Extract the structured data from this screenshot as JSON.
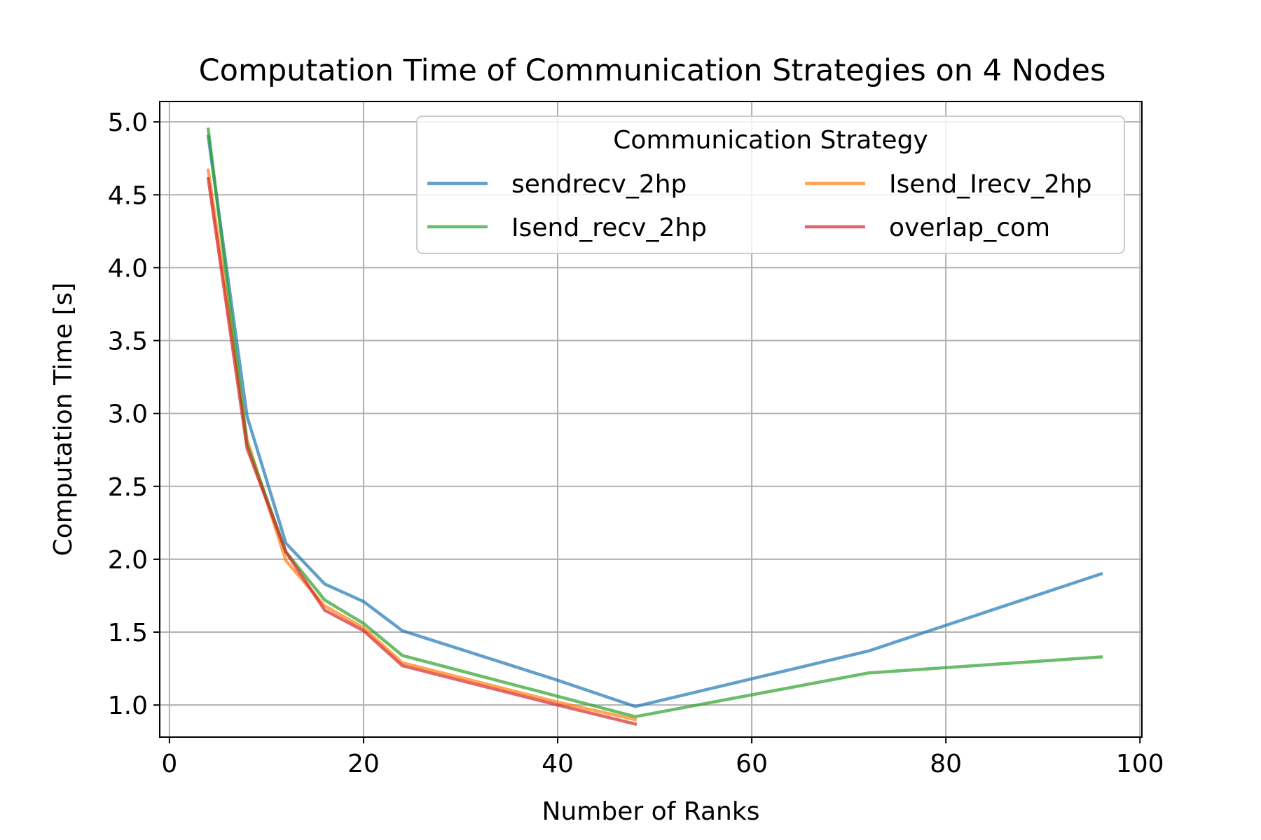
{
  "chart_data": {
    "type": "line",
    "title": "Computation Time of Communication Strategies on 4 Nodes",
    "xlabel": "Number of Ranks",
    "ylabel": "Computation Time [s]",
    "xlim": [
      -1,
      100.2
    ],
    "ylim": [
      0.78,
      5.14
    ],
    "xticks": [
      0,
      20,
      40,
      60,
      80,
      100
    ],
    "yticks": [
      1.0,
      1.5,
      2.0,
      2.5,
      3.0,
      3.5,
      4.0,
      4.5,
      5.0
    ],
    "xtick_labels": [
      "0",
      "20",
      "40",
      "60",
      "80",
      "100"
    ],
    "ytick_labels": [
      "1.0",
      "1.5",
      "2.0",
      "2.5",
      "3.0",
      "3.5",
      "4.0",
      "4.5",
      "5.0"
    ],
    "grid": true,
    "legend": {
      "title": "Communication Strategy",
      "placement": "upper right",
      "columns": 2
    },
    "series": [
      {
        "name": "sendrecv_2hp",
        "color": "#1f77b4",
        "x": [
          4,
          8,
          12,
          16,
          20,
          24,
          40,
          48,
          72,
          96
        ],
        "y": [
          4.9,
          2.98,
          2.11,
          1.83,
          1.71,
          1.51,
          1.17,
          0.99,
          1.37,
          1.9
        ]
      },
      {
        "name": "Isend_Irecv_2hp",
        "color": "#ff7f0e",
        "x": [
          4,
          8,
          12,
          16,
          20,
          24,
          40,
          48
        ],
        "y": [
          4.67,
          2.82,
          1.99,
          1.68,
          1.53,
          1.29,
          1.02,
          0.9
        ]
      },
      {
        "name": "Isend_recv_2hp",
        "color": "#2ca02c",
        "x": [
          4,
          8,
          12,
          16,
          20,
          24,
          40,
          48,
          72,
          96
        ],
        "y": [
          4.95,
          2.79,
          2.05,
          1.72,
          1.56,
          1.34,
          1.06,
          0.92,
          1.22,
          1.33
        ]
      },
      {
        "name": "overlap_com",
        "color": "#d62728",
        "x": [
          4,
          8,
          12,
          16,
          20,
          24,
          40,
          48
        ],
        "y": [
          4.61,
          2.76,
          2.05,
          1.65,
          1.51,
          1.27,
          1.0,
          0.87
        ]
      }
    ]
  }
}
